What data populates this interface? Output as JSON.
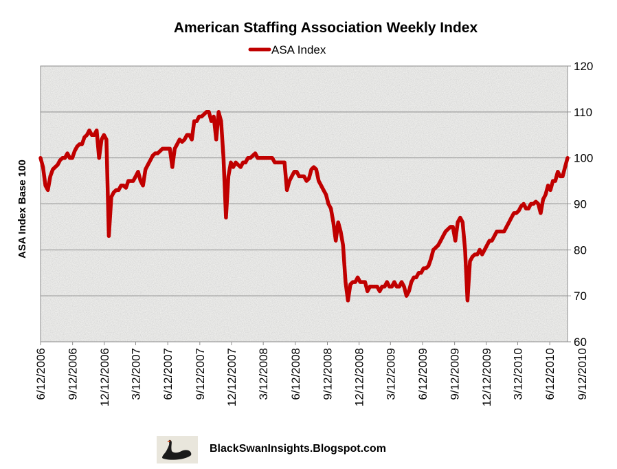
{
  "chart_data": {
    "type": "line",
    "title": "American Staffing Association Weekly Index",
    "ylabel": "ASA Index Base 100",
    "xlabel": "",
    "ylim": [
      60,
      120
    ],
    "yticks": [
      60,
      70,
      80,
      90,
      100,
      110,
      120
    ],
    "y_axis_side": "right",
    "grid": "horizontal",
    "legend_position": "top",
    "x_tick_labels": [
      "6/12/2006",
      "9/12/2006",
      "12/12/2006",
      "3/12/2007",
      "6/12/2007",
      "9/12/2007",
      "12/12/2007",
      "3/12/2008",
      "6/12/2008",
      "9/12/2008",
      "12/12/2008",
      "3/12/2009",
      "6/12/2009",
      "9/12/2009",
      "12/12/2009",
      "3/12/2010",
      "6/12/2010",
      "9/12/2010"
    ],
    "series": [
      {
        "name": "ASA Index",
        "color": "#c00000",
        "points": [
          [
            "2006-06-12",
            100
          ],
          [
            "2006-06-19",
            98
          ],
          [
            "2006-06-26",
            94
          ],
          [
            "2006-07-03",
            93
          ],
          [
            "2006-07-10",
            96
          ],
          [
            "2006-07-17",
            97.5
          ],
          [
            "2006-07-24",
            98
          ],
          [
            "2006-07-31",
            98.5
          ],
          [
            "2006-08-07",
            99.5
          ],
          [
            "2006-08-14",
            100
          ],
          [
            "2006-08-21",
            100
          ],
          [
            "2006-08-28",
            101
          ],
          [
            "2006-09-04",
            100
          ],
          [
            "2006-09-11",
            100
          ],
          [
            "2006-09-18",
            101.5
          ],
          [
            "2006-09-25",
            102.5
          ],
          [
            "2006-10-02",
            103
          ],
          [
            "2006-10-09",
            103
          ],
          [
            "2006-10-16",
            104.5
          ],
          [
            "2006-10-23",
            105
          ],
          [
            "2006-10-30",
            106
          ],
          [
            "2006-11-06",
            105
          ],
          [
            "2006-11-13",
            105
          ],
          [
            "2006-11-20",
            106
          ],
          [
            "2006-11-27",
            100
          ],
          [
            "2006-12-04",
            104
          ],
          [
            "2006-12-11",
            105
          ],
          [
            "2006-12-18",
            104
          ],
          [
            "2006-12-25",
            83
          ],
          [
            "2007-01-01",
            91.5
          ],
          [
            "2007-01-08",
            92.5
          ],
          [
            "2007-01-15",
            93
          ],
          [
            "2007-01-22",
            93
          ],
          [
            "2007-01-29",
            94
          ],
          [
            "2007-02-05",
            94
          ],
          [
            "2007-02-12",
            93.5
          ],
          [
            "2007-02-19",
            95
          ],
          [
            "2007-02-26",
            95
          ],
          [
            "2007-03-05",
            95
          ],
          [
            "2007-03-12",
            96
          ],
          [
            "2007-03-19",
            97
          ],
          [
            "2007-03-26",
            95
          ],
          [
            "2007-04-02",
            94
          ],
          [
            "2007-04-09",
            97.5
          ],
          [
            "2007-04-16",
            98.5
          ],
          [
            "2007-04-23",
            99.5
          ],
          [
            "2007-04-30",
            100.5
          ],
          [
            "2007-05-07",
            101
          ],
          [
            "2007-05-14",
            101
          ],
          [
            "2007-05-21",
            101.5
          ],
          [
            "2007-05-28",
            102
          ],
          [
            "2007-06-04",
            102
          ],
          [
            "2007-06-11",
            102
          ],
          [
            "2007-06-18",
            102
          ],
          [
            "2007-06-25",
            98
          ],
          [
            "2007-07-02",
            102
          ],
          [
            "2007-07-09",
            103
          ],
          [
            "2007-07-16",
            104
          ],
          [
            "2007-07-23",
            103.5
          ],
          [
            "2007-07-30",
            104
          ],
          [
            "2007-08-06",
            105
          ],
          [
            "2007-08-13",
            105
          ],
          [
            "2007-08-20",
            104
          ],
          [
            "2007-08-27",
            108
          ],
          [
            "2007-09-03",
            108
          ],
          [
            "2007-09-10",
            109
          ],
          [
            "2007-09-17",
            109
          ],
          [
            "2007-09-24",
            109.5
          ],
          [
            "2007-10-01",
            110
          ],
          [
            "2007-10-08",
            110
          ],
          [
            "2007-10-15",
            108
          ],
          [
            "2007-10-22",
            109
          ],
          [
            "2007-10-29",
            104
          ],
          [
            "2007-11-05",
            110
          ],
          [
            "2007-11-12",
            108
          ],
          [
            "2007-11-19",
            100
          ],
          [
            "2007-11-26",
            87
          ],
          [
            "2007-12-03",
            96
          ],
          [
            "2007-12-10",
            99
          ],
          [
            "2007-12-17",
            98
          ],
          [
            "2007-12-24",
            99
          ],
          [
            "2007-12-31",
            98.5
          ],
          [
            "2008-01-07",
            98
          ],
          [
            "2008-01-14",
            99
          ],
          [
            "2008-01-21",
            99
          ],
          [
            "2008-01-28",
            100
          ],
          [
            "2008-02-04",
            100
          ],
          [
            "2008-02-11",
            100.5
          ],
          [
            "2008-02-18",
            101
          ],
          [
            "2008-02-25",
            100
          ],
          [
            "2008-03-03",
            100
          ],
          [
            "2008-03-10",
            100
          ],
          [
            "2008-03-17",
            100
          ],
          [
            "2008-03-24",
            100
          ],
          [
            "2008-03-31",
            100
          ],
          [
            "2008-04-07",
            100
          ],
          [
            "2008-04-14",
            99
          ],
          [
            "2008-04-21",
            99
          ],
          [
            "2008-04-28",
            99
          ],
          [
            "2008-05-05",
            99
          ],
          [
            "2008-05-12",
            99
          ],
          [
            "2008-05-19",
            93
          ],
          [
            "2008-05-26",
            95
          ],
          [
            "2008-06-02",
            96
          ],
          [
            "2008-06-09",
            97
          ],
          [
            "2008-06-16",
            97
          ],
          [
            "2008-06-23",
            96
          ],
          [
            "2008-06-30",
            96
          ],
          [
            "2008-07-07",
            96
          ],
          [
            "2008-07-14",
            95
          ],
          [
            "2008-07-21",
            95.5
          ],
          [
            "2008-07-28",
            97.5
          ],
          [
            "2008-08-04",
            98
          ],
          [
            "2008-08-11",
            97.5
          ],
          [
            "2008-08-18",
            95
          ],
          [
            "2008-08-25",
            94
          ],
          [
            "2008-09-01",
            93
          ],
          [
            "2008-09-08",
            92
          ],
          [
            "2008-09-15",
            90
          ],
          [
            "2008-09-22",
            89
          ],
          [
            "2008-09-29",
            86
          ],
          [
            "2008-10-06",
            82
          ],
          [
            "2008-10-13",
            86
          ],
          [
            "2008-10-20",
            84
          ],
          [
            "2008-10-27",
            81
          ],
          [
            "2008-11-03",
            73
          ],
          [
            "2008-11-10",
            69
          ],
          [
            "2008-11-17",
            72.5
          ],
          [
            "2008-11-24",
            73
          ],
          [
            "2008-12-01",
            73
          ],
          [
            "2008-12-08",
            74
          ],
          [
            "2008-12-15",
            73
          ],
          [
            "2008-12-22",
            73
          ],
          [
            "2008-12-29",
            73
          ],
          [
            "2009-01-05",
            71
          ],
          [
            "2009-01-12",
            72
          ],
          [
            "2009-01-19",
            72
          ],
          [
            "2009-01-26",
            72
          ],
          [
            "2009-02-02",
            72
          ],
          [
            "2009-02-09",
            71
          ],
          [
            "2009-02-16",
            72
          ],
          [
            "2009-02-23",
            72
          ],
          [
            "2009-03-02",
            73
          ],
          [
            "2009-03-09",
            72
          ],
          [
            "2009-03-16",
            72
          ],
          [
            "2009-03-23",
            73
          ],
          [
            "2009-03-30",
            72
          ],
          [
            "2009-04-06",
            72
          ],
          [
            "2009-04-13",
            73
          ],
          [
            "2009-04-20",
            72
          ],
          [
            "2009-04-27",
            70
          ],
          [
            "2009-05-04",
            71
          ],
          [
            "2009-05-11",
            73
          ],
          [
            "2009-05-18",
            74
          ],
          [
            "2009-05-25",
            74
          ],
          [
            "2009-06-01",
            75
          ],
          [
            "2009-06-08",
            75
          ],
          [
            "2009-06-15",
            76
          ],
          [
            "2009-06-22",
            76
          ],
          [
            "2009-06-29",
            76.5
          ],
          [
            "2009-07-06",
            78
          ],
          [
            "2009-07-13",
            80
          ],
          [
            "2009-07-20",
            80.5
          ],
          [
            "2009-07-27",
            81
          ],
          [
            "2009-08-03",
            82
          ],
          [
            "2009-08-10",
            83
          ],
          [
            "2009-08-17",
            84
          ],
          [
            "2009-08-24",
            84.5
          ],
          [
            "2009-08-31",
            85
          ],
          [
            "2009-09-07",
            85
          ],
          [
            "2009-09-14",
            82
          ],
          [
            "2009-09-21",
            86
          ],
          [
            "2009-09-28",
            87
          ],
          [
            "2009-10-05",
            86
          ],
          [
            "2009-10-12",
            80
          ],
          [
            "2009-10-19",
            69
          ],
          [
            "2009-10-26",
            77.5
          ],
          [
            "2009-11-02",
            78.5
          ],
          [
            "2009-11-09",
            79
          ],
          [
            "2009-11-16",
            79
          ],
          [
            "2009-11-23",
            80
          ],
          [
            "2009-11-30",
            79
          ],
          [
            "2009-12-07",
            80
          ],
          [
            "2009-12-14",
            81
          ],
          [
            "2009-12-21",
            82
          ],
          [
            "2009-12-28",
            82
          ],
          [
            "2010-01-04",
            83
          ],
          [
            "2010-01-11",
            84
          ],
          [
            "2010-01-18",
            84
          ],
          [
            "2010-01-25",
            84
          ],
          [
            "2010-02-01",
            84
          ],
          [
            "2010-02-08",
            85
          ],
          [
            "2010-02-15",
            86
          ],
          [
            "2010-02-22",
            87
          ],
          [
            "2010-03-01",
            88
          ],
          [
            "2010-03-08",
            88
          ],
          [
            "2010-03-15",
            88.5
          ],
          [
            "2010-03-22",
            89.5
          ],
          [
            "2010-03-29",
            90
          ],
          [
            "2010-04-05",
            89
          ],
          [
            "2010-04-12",
            89
          ],
          [
            "2010-04-19",
            90
          ],
          [
            "2010-04-26",
            90
          ],
          [
            "2010-05-03",
            90.5
          ],
          [
            "2010-05-10",
            90
          ],
          [
            "2010-05-17",
            88
          ],
          [
            "2010-05-24",
            91
          ],
          [
            "2010-05-31",
            92
          ],
          [
            "2010-06-07",
            94
          ],
          [
            "2010-06-14",
            93
          ],
          [
            "2010-06-21",
            95
          ],
          [
            "2010-06-28",
            95
          ],
          [
            "2010-07-05",
            97
          ],
          [
            "2010-07-12",
            96
          ],
          [
            "2010-07-19",
            96
          ],
          [
            "2010-07-26",
            98
          ],
          [
            "2010-08-02",
            100
          ]
        ]
      }
    ]
  },
  "credit_text": "BlackSwanInsights.Blogspot.com"
}
